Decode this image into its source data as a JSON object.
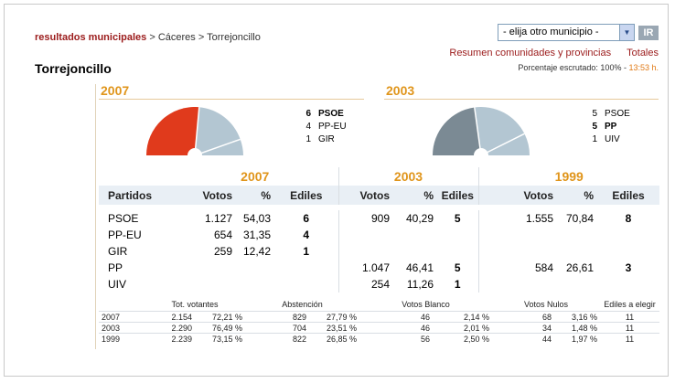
{
  "breadcrumb": {
    "root": "resultados municipales",
    "sep": ">",
    "province": "Cáceres",
    "town": "Torrejoncillo"
  },
  "select": {
    "value": "- elija otro municipio -"
  },
  "go_button": "IR",
  "links": {
    "summary": "Resumen comunidades y provincias",
    "totals": "Totales"
  },
  "scrutiny": {
    "label": "Porcentaje escrutado: 100% -",
    "time": "13:53 h."
  },
  "page_title": "Torrejoncillo",
  "colors": {
    "accent": "#e0951b",
    "psoe": "#e03a1c",
    "pp": "#7b8a94",
    "empty": "#b3c6d2"
  },
  "council": [
    {
      "year": "2007",
      "parties": [
        {
          "seats": "6",
          "name": "PSOE",
          "winner": true
        },
        {
          "seats": "4",
          "name": "PP-EU",
          "winner": false
        },
        {
          "seats": "1",
          "name": "GIR",
          "winner": false
        }
      ]
    },
    {
      "year": "2003",
      "parties": [
        {
          "seats": "5",
          "name": "PSOE",
          "winner": false
        },
        {
          "seats": "5",
          "name": "PP",
          "winner": true
        },
        {
          "seats": "1",
          "name": "UIV",
          "winner": false
        }
      ]
    }
  ],
  "results": {
    "years": [
      "2007",
      "2003",
      "1999"
    ],
    "headers": {
      "party": "Partidos",
      "votes": "Votos",
      "pct": "%",
      "seats": "Ediles"
    },
    "rows": [
      {
        "party": "PSOE",
        "y2007": {
          "votes": "1.127",
          "pct": "54,03",
          "seats": "6"
        },
        "y2003": {
          "votes": "909",
          "pct": "40,29",
          "seats": "5"
        },
        "y1999": {
          "votes": "1.555",
          "pct": "70,84",
          "seats": "8"
        }
      },
      {
        "party": "PP-EU",
        "y2007": {
          "votes": "654",
          "pct": "31,35",
          "seats": "4"
        },
        "y2003": {
          "votes": "",
          "pct": "",
          "seats": ""
        },
        "y1999": {
          "votes": "",
          "pct": "",
          "seats": ""
        }
      },
      {
        "party": "GIR",
        "y2007": {
          "votes": "259",
          "pct": "12,42",
          "seats": "1"
        },
        "y2003": {
          "votes": "",
          "pct": "",
          "seats": ""
        },
        "y1999": {
          "votes": "",
          "pct": "",
          "seats": ""
        }
      },
      {
        "party": "PP",
        "y2007": {
          "votes": "",
          "pct": "",
          "seats": ""
        },
        "y2003": {
          "votes": "1.047",
          "pct": "46,41",
          "seats": "5"
        },
        "y1999": {
          "votes": "584",
          "pct": "26,61",
          "seats": "3"
        }
      },
      {
        "party": "UIV",
        "y2007": {
          "votes": "",
          "pct": "",
          "seats": ""
        },
        "y2003": {
          "votes": "254",
          "pct": "11,26",
          "seats": "1"
        },
        "y1999": {
          "votes": "",
          "pct": "",
          "seats": ""
        }
      }
    ]
  },
  "totals": {
    "headers": {
      "voters": "Tot. votantes",
      "abstention": "Abstención",
      "blank": "Votos Blanco",
      "null": "Votos Nulos",
      "seats": "Ediles a elegir"
    },
    "rows": [
      {
        "year": "2007",
        "voters": "2.154",
        "voters_pct": "72,21 %",
        "abst": "829",
        "abst_pct": "27,79 %",
        "blank": "46",
        "blank_pct": "2,14 %",
        "null": "68",
        "null_pct": "3,16 %",
        "seats": "11"
      },
      {
        "year": "2003",
        "voters": "2.290",
        "voters_pct": "76,49 %",
        "abst": "704",
        "abst_pct": "23,51 %",
        "blank": "46",
        "blank_pct": "2,01 %",
        "null": "34",
        "null_pct": "1,48 %",
        "seats": "11"
      },
      {
        "year": "1999",
        "voters": "2.239",
        "voters_pct": "73,15 %",
        "abst": "822",
        "abst_pct": "26,85 %",
        "blank": "56",
        "blank_pct": "2,50 %",
        "null": "44",
        "null_pct": "1,97 %",
        "seats": "11"
      }
    ]
  }
}
